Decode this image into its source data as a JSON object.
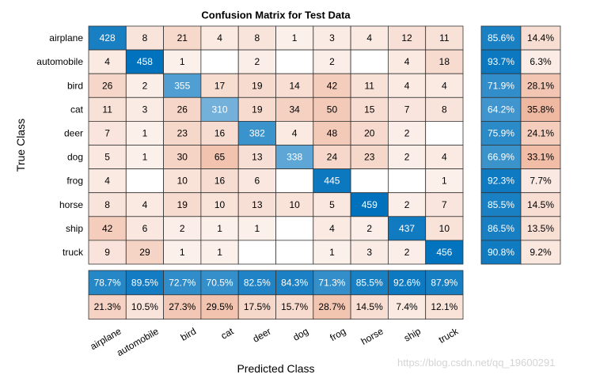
{
  "chart_data": {
    "type": "heatmap",
    "title": "Confusion Matrix for Test Data",
    "xlabel": "Predicted Class",
    "ylabel": "True Class",
    "classes": [
      "airplane",
      "automobile",
      "bird",
      "cat",
      "deer",
      "dog",
      "frog",
      "horse",
      "ship",
      "truck"
    ],
    "matrix": [
      [
        428,
        8,
        21,
        4,
        8,
        1,
        3,
        4,
        12,
        11
      ],
      [
        4,
        458,
        1,
        null,
        2,
        null,
        2,
        null,
        4,
        18
      ],
      [
        26,
        2,
        355,
        17,
        19,
        14,
        42,
        11,
        4,
        4
      ],
      [
        11,
        3,
        26,
        310,
        19,
        34,
        50,
        15,
        7,
        8
      ],
      [
        7,
        1,
        23,
        16,
        382,
        4,
        48,
        20,
        2,
        null
      ],
      [
        5,
        1,
        30,
        65,
        13,
        338,
        24,
        23,
        2,
        4
      ],
      [
        4,
        null,
        10,
        16,
        6,
        null,
        445,
        null,
        null,
        1
      ],
      [
        8,
        4,
        19,
        10,
        13,
        10,
        5,
        459,
        2,
        7
      ],
      [
        42,
        6,
        2,
        1,
        1,
        null,
        4,
        2,
        437,
        10
      ],
      [
        9,
        29,
        1,
        1,
        null,
        null,
        1,
        3,
        2,
        456
      ]
    ],
    "row_summary": {
      "correct": [
        "85.6%",
        "93.7%",
        "71.9%",
        "64.2%",
        "75.9%",
        "66.9%",
        "92.3%",
        "85.5%",
        "86.5%",
        "90.8%"
      ],
      "incorrect": [
        "14.4%",
        "6.3%",
        "28.1%",
        "35.8%",
        "24.1%",
        "33.1%",
        "7.7%",
        "14.5%",
        "13.5%",
        "9.2%"
      ]
    },
    "column_summary": {
      "correct": [
        "78.7%",
        "89.5%",
        "72.7%",
        "70.5%",
        "82.5%",
        "84.3%",
        "71.3%",
        "85.5%",
        "92.6%",
        "87.9%"
      ],
      "incorrect": [
        "21.3%",
        "10.5%",
        "27.3%",
        "29.5%",
        "17.5%",
        "15.7%",
        "28.7%",
        "14.5%",
        "7.4%",
        "12.1%"
      ]
    },
    "colors": {
      "diagonal": "#0072bd",
      "off_diagonal": "#d95319",
      "grid": "#333333"
    }
  },
  "watermark": "https://blog.csdn.net/qq_19600291"
}
